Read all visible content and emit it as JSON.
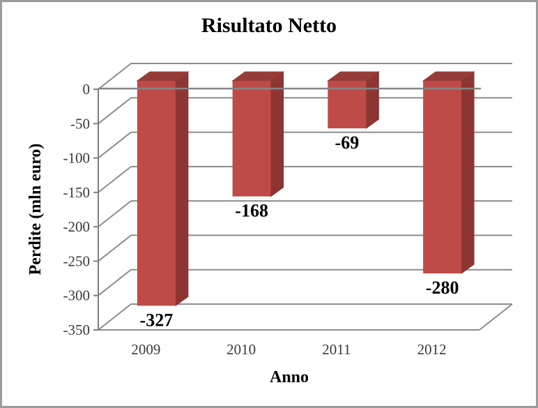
{
  "chart_data": {
    "type": "bar",
    "style": "3d-column-negative",
    "title": "Risultato Netto",
    "xlabel": "Anno",
    "ylabel": "Perdite (mln euro)",
    "categories": [
      "2009",
      "2010",
      "2011",
      "2012"
    ],
    "values": [
      -327,
      -168,
      -69,
      -280
    ],
    "data_labels": [
      "-327",
      "-168",
      "-69",
      "-280"
    ],
    "yticks": [
      0,
      -50,
      -100,
      -150,
      -200,
      -250,
      -300,
      -350
    ],
    "ytick_labels": [
      "0",
      "-50",
      "-100",
      "-150",
      "-200",
      "-250",
      "-300",
      "-350"
    ],
    "ylim": [
      -350,
      0
    ],
    "grid": true,
    "legend": false,
    "colors": {
      "bar_front": "#BE4B48",
      "bar_top": "#963C39",
      "bar_side": "#8C3533",
      "gridline": "#8C8C8C",
      "axis": "#7F7F7F",
      "tick_text": "#3A3A3A",
      "label_text": "#000000",
      "border": "#9C9C9C",
      "background": "#FFFFFF"
    }
  }
}
